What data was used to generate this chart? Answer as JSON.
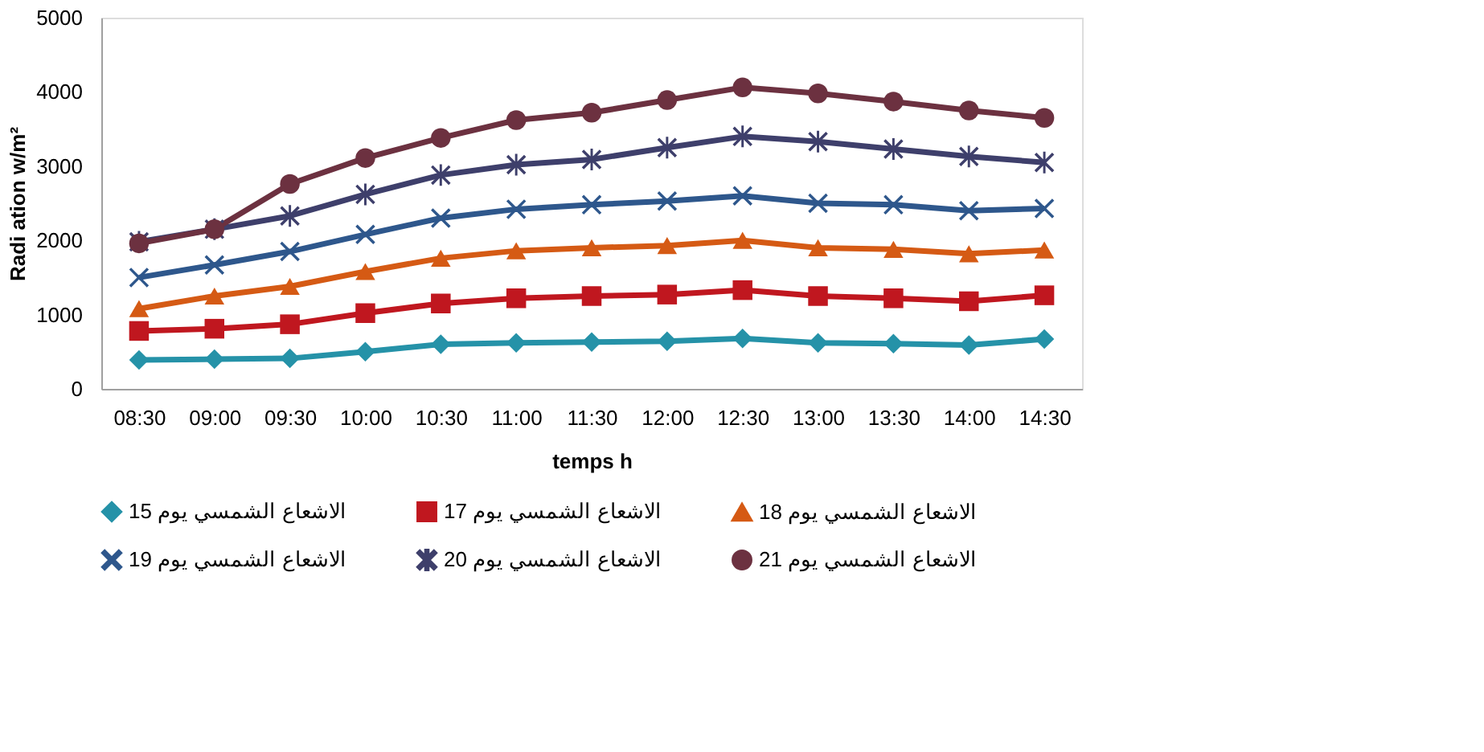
{
  "chart_data": {
    "type": "line",
    "xlabel": "temps h",
    "ylabel": "Radi ation  w/m²",
    "categories": [
      "08:30",
      "09:00",
      "09:30",
      "10:00",
      "10:30",
      "11:00",
      "11:30",
      "12:00",
      "12:30",
      "13:00",
      "13:30",
      "14:00",
      "14:30"
    ],
    "ylim": [
      0,
      5000
    ],
    "yticks": [
      0,
      1000,
      2000,
      3000,
      4000,
      5000
    ],
    "grid": false,
    "legend": "bottom",
    "series": [
      {
        "name": "الاشعاع الشمسي يوم 15",
        "color": "#2592a8",
        "marker": "diamond",
        "values": [
          390,
          400,
          410,
          500,
          600,
          620,
          630,
          640,
          680,
          620,
          610,
          590,
          670
        ]
      },
      {
        "name": "الاشعاع الشمسي يوم 17",
        "color": "#c0171f",
        "marker": "square",
        "values": [
          780,
          810,
          870,
          1020,
          1150,
          1220,
          1250,
          1270,
          1330,
          1250,
          1220,
          1180,
          1260
        ]
      },
      {
        "name": "الاشعاع الشمسي يوم 18",
        "color": "#d55a14",
        "marker": "triangle",
        "values": [
          1080,
          1250,
          1380,
          1580,
          1760,
          1860,
          1900,
          1930,
          2000,
          1900,
          1880,
          1820,
          1870
        ]
      },
      {
        "name": "الاشعاع الشمسي يوم 19",
        "color": "#2e578c",
        "marker": "cross",
        "values": [
          1500,
          1670,
          1850,
          2080,
          2300,
          2420,
          2480,
          2530,
          2600,
          2500,
          2480,
          2400,
          2430
        ]
      },
      {
        "name": "الاشعاع الشمسي يوم 20",
        "color": "#3e3f6b",
        "marker": "star",
        "values": [
          1980,
          2150,
          2330,
          2620,
          2880,
          3020,
          3090,
          3250,
          3400,
          3330,
          3230,
          3130,
          3050
        ]
      },
      {
        "name": "الاشعاع الشمسي يوم 21",
        "color": "#6c3140",
        "marker": "circle",
        "values": [
          1960,
          2150,
          2760,
          3110,
          3380,
          3620,
          3720,
          3890,
          4060,
          3980,
          3870,
          3750,
          3650
        ]
      }
    ]
  }
}
